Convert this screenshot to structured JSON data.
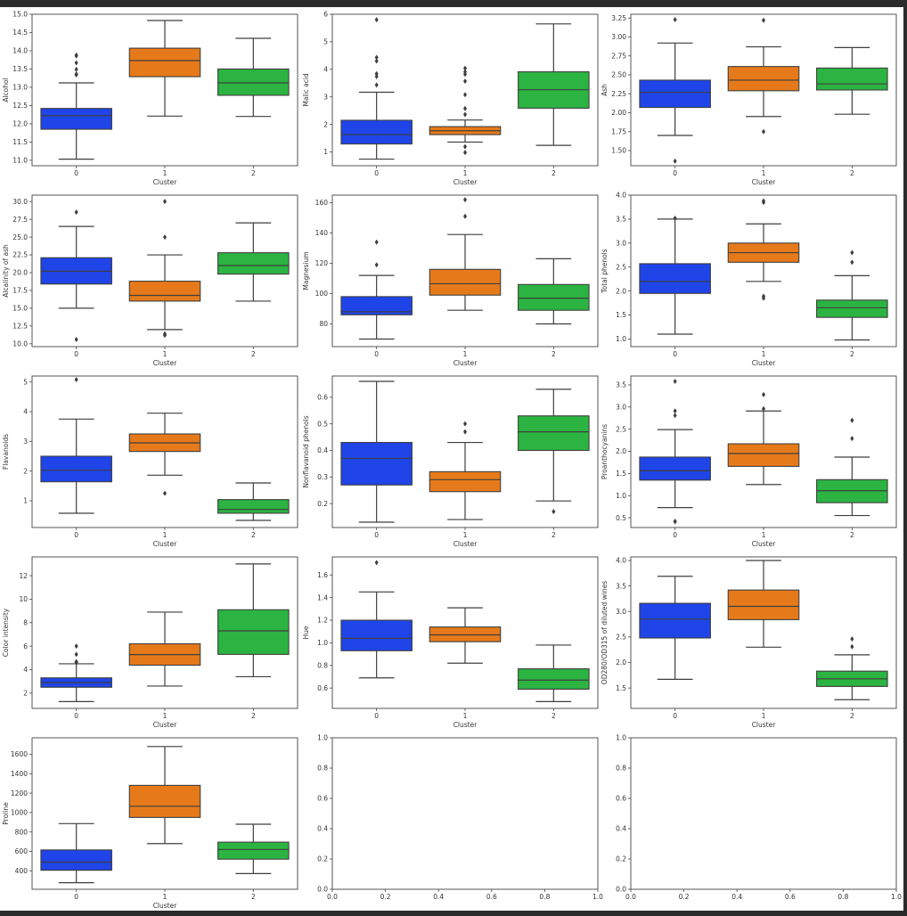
{
  "figure": {
    "background": "#ffffff",
    "frame_color": "#2b2b2b",
    "palette": [
      "#1f44e8",
      "#e67a1a",
      "#2bb441"
    ],
    "line_color": "#3f3f3f",
    "grid": [
      5,
      3
    ]
  },
  "chart_data": [
    {
      "type": "box",
      "ylabel": "Alcohol",
      "xlabel": "Cluster",
      "categories": [
        "0",
        "1",
        "2"
      ],
      "yticks": [
        11.0,
        11.5,
        12.0,
        12.5,
        13.0,
        13.5,
        14.0,
        14.5,
        15.0
      ],
      "ytick_labels": [
        "11.0",
        "11.5",
        "12.0",
        "12.5",
        "13.0",
        "13.5",
        "14.0",
        "14.5",
        "15.0"
      ],
      "ylim": [
        10.85,
        15.0
      ],
      "boxes": [
        {
          "whislo": 11.03,
          "q1": 11.85,
          "med": 12.22,
          "q3": 12.42,
          "whishi": 13.12,
          "fliers": [
            13.34,
            13.36,
            13.49,
            13.67,
            13.86,
            13.88
          ]
        },
        {
          "whislo": 12.21,
          "q1": 13.29,
          "med": 13.73,
          "q3": 14.07,
          "whishi": 14.83,
          "fliers": []
        },
        {
          "whislo": 12.2,
          "q1": 12.78,
          "med": 13.12,
          "q3": 13.5,
          "whishi": 14.34,
          "fliers": []
        }
      ]
    },
    {
      "type": "box",
      "ylabel": "Malic acid",
      "xlabel": "Cluster",
      "categories": [
        "0",
        "1",
        "2"
      ],
      "yticks": [
        1,
        2,
        3,
        4,
        5,
        6
      ],
      "ytick_labels": [
        "1",
        "2",
        "3",
        "4",
        "5",
        "6"
      ],
      "ylim": [
        0.5,
        6.0
      ],
      "boxes": [
        {
          "whislo": 0.74,
          "q1": 1.29,
          "med": 1.63,
          "q3": 2.15,
          "whishi": 3.17,
          "fliers": [
            3.43,
            3.74,
            3.84,
            4.3,
            4.43,
            5.8
          ]
        },
        {
          "whislo": 1.36,
          "q1": 1.63,
          "med": 1.77,
          "q3": 1.92,
          "whishi": 2.16,
          "fliers": [
            0.98,
            1.19,
            2.36,
            2.58,
            3.08,
            3.57,
            3.82,
            3.91,
            4.04
          ]
        },
        {
          "whislo": 1.24,
          "q1": 2.59,
          "med": 3.26,
          "q3": 3.91,
          "whishi": 5.65,
          "fliers": []
        }
      ]
    },
    {
      "type": "box",
      "ylabel": "Ash",
      "xlabel": "Cluster",
      "categories": [
        "0",
        "1",
        "2"
      ],
      "yticks": [
        1.5,
        1.75,
        2.0,
        2.25,
        2.5,
        2.75,
        3.0,
        3.25
      ],
      "ytick_labels": [
        "1.50",
        "1.75",
        "2.00",
        "2.25",
        "2.50",
        "2.75",
        "3.00",
        "3.25"
      ],
      "ylim": [
        1.3,
        3.3
      ],
      "boxes": [
        {
          "whislo": 1.7,
          "q1": 2.07,
          "med": 2.27,
          "q3": 2.43,
          "whishi": 2.92,
          "fliers": [
            1.36,
            3.23
          ]
        },
        {
          "whislo": 1.95,
          "q1": 2.29,
          "med": 2.43,
          "q3": 2.61,
          "whishi": 2.87,
          "fliers": [
            1.75,
            3.22
          ]
        },
        {
          "whislo": 1.98,
          "q1": 2.3,
          "med": 2.38,
          "q3": 2.59,
          "whishi": 2.86,
          "fliers": []
        }
      ]
    },
    {
      "type": "box",
      "ylabel": "Alcalinity of ash",
      "xlabel": "Cluster",
      "categories": [
        "0",
        "1",
        "2"
      ],
      "yticks": [
        10.0,
        12.5,
        15.0,
        17.5,
        20.0,
        22.5,
        25.0,
        27.5,
        30.0
      ],
      "ytick_labels": [
        "10.0",
        "12.5",
        "15.0",
        "17.5",
        "20.0",
        "22.5",
        "25.0",
        "27.5",
        "30.0"
      ],
      "ylim": [
        9.6,
        30.9
      ],
      "boxes": [
        {
          "whislo": 15.0,
          "q1": 18.4,
          "med": 20.2,
          "q3": 22.1,
          "whishi": 26.5,
          "fliers": [
            10.6,
            28.5
          ]
        },
        {
          "whislo": 12.0,
          "q1": 16.0,
          "med": 16.8,
          "q3": 18.8,
          "whishi": 22.5,
          "fliers": [
            11.2,
            11.4,
            25.0,
            30.0
          ]
        },
        {
          "whislo": 16.0,
          "q1": 19.8,
          "med": 21.0,
          "q3": 22.8,
          "whishi": 27.0,
          "fliers": []
        }
      ]
    },
    {
      "type": "box",
      "ylabel": "Magnesium",
      "xlabel": "Cluster",
      "categories": [
        "0",
        "1",
        "2"
      ],
      "yticks": [
        80,
        100,
        120,
        140,
        160
      ],
      "ytick_labels": [
        "80",
        "100",
        "120",
        "140",
        "160"
      ],
      "ylim": [
        65,
        165
      ],
      "boxes": [
        {
          "whislo": 70,
          "q1": 86,
          "med": 88,
          "q3": 98,
          "whishi": 112,
          "fliers": [
            119,
            134
          ]
        },
        {
          "whislo": 89,
          "q1": 99,
          "med": 106.5,
          "q3": 116,
          "whishi": 139,
          "fliers": [
            151,
            162
          ]
        },
        {
          "whislo": 80,
          "q1": 89,
          "med": 97,
          "q3": 106,
          "whishi": 123,
          "fliers": []
        }
      ]
    },
    {
      "type": "box",
      "ylabel": "Total phenols",
      "xlabel": "Cluster",
      "categories": [
        "0",
        "1",
        "2"
      ],
      "yticks": [
        1.0,
        1.5,
        2.0,
        2.5,
        3.0,
        3.5,
        4.0
      ],
      "ytick_labels": [
        "1.0",
        "1.5",
        "2.0",
        "2.5",
        "3.0",
        "3.5",
        "4.0"
      ],
      "ylim": [
        0.84,
        4.0
      ],
      "boxes": [
        {
          "whislo": 1.1,
          "q1": 1.95,
          "med": 2.2,
          "q3": 2.57,
          "whishi": 3.5,
          "fliers": [
            3.52
          ]
        },
        {
          "whislo": 2.2,
          "q1": 2.6,
          "med": 2.8,
          "q3": 3.0,
          "whishi": 3.4,
          "fliers": [
            1.85,
            1.89,
            3.85,
            3.88
          ]
        },
        {
          "whislo": 0.98,
          "q1": 1.45,
          "med": 1.65,
          "q3": 1.81,
          "whishi": 2.32,
          "fliers": [
            2.6,
            2.8
          ]
        }
      ]
    },
    {
      "type": "box",
      "ylabel": "Flavanoids",
      "xlabel": "Cluster",
      "categories": [
        "0",
        "1",
        "2"
      ],
      "yticks": [
        1,
        2,
        3,
        4,
        5
      ],
      "ytick_labels": [
        "1",
        "2",
        "3",
        "4",
        "5"
      ],
      "ylim": [
        0.1,
        5.2
      ],
      "boxes": [
        {
          "whislo": 0.58,
          "q1": 1.64,
          "med": 2.03,
          "q3": 2.5,
          "whishi": 3.75,
          "fliers": [
            5.08
          ]
        },
        {
          "whislo": 1.86,
          "q1": 2.66,
          "med": 2.95,
          "q3": 3.25,
          "whishi": 3.95,
          "fliers": [
            1.25
          ]
        },
        {
          "whislo": 0.34,
          "q1": 0.58,
          "med": 0.71,
          "q3": 1.04,
          "whishi": 1.6,
          "fliers": []
        }
      ]
    },
    {
      "type": "box",
      "ylabel": "Nonflavanoid phenols",
      "xlabel": "Cluster",
      "categories": [
        "0",
        "1",
        "2"
      ],
      "yticks": [
        0.2,
        0.3,
        0.4,
        0.5,
        0.6
      ],
      "ytick_labels": [
        "0.2",
        "0.3",
        "0.4",
        "0.5",
        "0.6"
      ],
      "ylim": [
        0.11,
        0.68
      ],
      "boxes": [
        {
          "whislo": 0.13,
          "q1": 0.27,
          "med": 0.37,
          "q3": 0.43,
          "whishi": 0.66,
          "fliers": []
        },
        {
          "whislo": 0.14,
          "q1": 0.245,
          "med": 0.29,
          "q3": 0.32,
          "whishi": 0.43,
          "fliers": [
            0.47,
            0.5
          ]
        },
        {
          "whislo": 0.21,
          "q1": 0.4,
          "med": 0.47,
          "q3": 0.53,
          "whishi": 0.63,
          "fliers": [
            0.17
          ]
        }
      ]
    },
    {
      "type": "box",
      "ylabel": "Proanthocyanins",
      "xlabel": "Cluster",
      "categories": [
        "0",
        "1",
        "2"
      ],
      "yticks": [
        0.5,
        1.0,
        1.5,
        2.0,
        2.5,
        3.0,
        3.5
      ],
      "ytick_labels": [
        "0.5",
        "1.0",
        "1.5",
        "2.0",
        "2.5",
        "3.0",
        "3.5"
      ],
      "ylim": [
        0.28,
        3.7
      ],
      "boxes": [
        {
          "whislo": 0.73,
          "q1": 1.35,
          "med": 1.56,
          "q3": 1.87,
          "whishi": 2.49,
          "fliers": [
            0.41,
            0.42,
            2.81,
            2.91,
            3.58
          ]
        },
        {
          "whislo": 1.25,
          "q1": 1.66,
          "med": 1.95,
          "q3": 2.17,
          "whishi": 2.91,
          "fliers": [
            2.96,
            3.28
          ]
        },
        {
          "whislo": 0.55,
          "q1": 0.84,
          "med": 1.11,
          "q3": 1.36,
          "whishi": 1.87,
          "fliers": [
            2.29,
            2.7
          ]
        }
      ]
    },
    {
      "type": "box",
      "ylabel": "Color intensity",
      "xlabel": "Cluster",
      "categories": [
        "0",
        "1",
        "2"
      ],
      "yticks": [
        2,
        4,
        6,
        8,
        10,
        12
      ],
      "ytick_labels": [
        "2",
        "4",
        "6",
        "8",
        "10",
        "12"
      ],
      "ylim": [
        0.7,
        13.6
      ],
      "boxes": [
        {
          "whislo": 1.28,
          "q1": 2.5,
          "med": 2.9,
          "q3": 3.3,
          "whishi": 4.5,
          "fliers": [
            4.6,
            4.68,
            5.3,
            6.0
          ]
        },
        {
          "whislo": 2.6,
          "q1": 4.38,
          "med": 5.28,
          "q3": 6.2,
          "whishi": 8.9,
          "fliers": []
        },
        {
          "whislo": 3.4,
          "q1": 5.3,
          "med": 7.3,
          "q3": 9.1,
          "whishi": 13.0,
          "fliers": []
        }
      ]
    },
    {
      "type": "box",
      "ylabel": "Hue",
      "xlabel": "Cluster",
      "categories": [
        "0",
        "1",
        "2"
      ],
      "yticks": [
        0.6,
        0.8,
        1.0,
        1.2,
        1.4,
        1.6
      ],
      "ytick_labels": [
        "0.6",
        "0.8",
        "1.0",
        "1.2",
        "1.4",
        "1.6"
      ],
      "ylim": [
        0.42,
        1.76
      ],
      "boxes": [
        {
          "whislo": 0.69,
          "q1": 0.93,
          "med": 1.04,
          "q3": 1.2,
          "whishi": 1.45,
          "fliers": [
            1.71
          ]
        },
        {
          "whislo": 0.82,
          "q1": 1.01,
          "med": 1.07,
          "q3": 1.14,
          "whishi": 1.31,
          "fliers": []
        },
        {
          "whislo": 0.48,
          "q1": 0.59,
          "med": 0.67,
          "q3": 0.77,
          "whishi": 0.98,
          "fliers": []
        }
      ]
    },
    {
      "type": "box",
      "ylabel": "OD280/OD315 of diluted wines",
      "xlabel": "Cluster",
      "categories": [
        "0",
        "1",
        "2"
      ],
      "yticks": [
        1.5,
        2.0,
        2.5,
        3.0,
        3.5,
        4.0
      ],
      "ytick_labels": [
        "1.5",
        "2.0",
        "2.5",
        "3.0",
        "3.5",
        "4.0"
      ],
      "ylim": [
        1.1,
        4.07
      ],
      "boxes": [
        {
          "whislo": 1.67,
          "q1": 2.48,
          "med": 2.85,
          "q3": 3.16,
          "whishi": 3.69,
          "fliers": []
        },
        {
          "whislo": 2.3,
          "q1": 2.84,
          "med": 3.1,
          "q3": 3.42,
          "whishi": 4.0,
          "fliers": []
        },
        {
          "whislo": 1.27,
          "q1": 1.53,
          "med": 1.68,
          "q3": 1.83,
          "whishi": 2.15,
          "fliers": [
            2.31,
            2.46
          ]
        }
      ]
    },
    {
      "type": "box",
      "ylabel": "Proline",
      "xlabel": "Cluster",
      "categories": [
        "0",
        "1",
        "2"
      ],
      "yticks": [
        400,
        600,
        800,
        1000,
        1200,
        1400,
        1600
      ],
      "ytick_labels": [
        "400",
        "600",
        "800",
        "1000",
        "1200",
        "1400",
        "1600"
      ],
      "ylim": [
        210,
        1770
      ],
      "boxes": [
        {
          "whislo": 278,
          "q1": 406,
          "med": 490,
          "q3": 615,
          "whishi": 886,
          "fliers": []
        },
        {
          "whislo": 680,
          "q1": 950,
          "med": 1065,
          "q3": 1280,
          "whishi": 1680,
          "fliers": []
        },
        {
          "whislo": 372,
          "q1": 520,
          "med": 620,
          "q3": 695,
          "whishi": 880,
          "fliers": []
        }
      ]
    },
    {
      "type": "empty",
      "ylabel": "",
      "xlabel": "",
      "xticks": [
        0.0,
        0.2,
        0.4,
        0.6,
        0.8,
        1.0
      ],
      "xtick_labels": [
        "0.0",
        "0.2",
        "0.4",
        "0.6",
        "0.8",
        "1.0"
      ],
      "yticks": [
        0.0,
        0.2,
        0.4,
        0.6,
        0.8,
        1.0
      ],
      "ytick_labels": [
        "0.0",
        "0.2",
        "0.4",
        "0.6",
        "0.8",
        "1.0"
      ],
      "xlim": [
        0,
        1
      ],
      "ylim": [
        0,
        1
      ]
    },
    {
      "type": "empty",
      "ylabel": "",
      "xlabel": "",
      "xticks": [
        0.0,
        0.2,
        0.4,
        0.6,
        0.8,
        1.0
      ],
      "xtick_labels": [
        "0.0",
        "0.2",
        "0.4",
        "0.6",
        "0.8",
        "1.0"
      ],
      "yticks": [
        0.0,
        0.2,
        0.4,
        0.6,
        0.8,
        1.0
      ],
      "ytick_labels": [
        "0.0",
        "0.2",
        "0.4",
        "0.6",
        "0.8",
        "1.0"
      ],
      "xlim": [
        0,
        1
      ],
      "ylim": [
        0,
        1
      ]
    }
  ]
}
